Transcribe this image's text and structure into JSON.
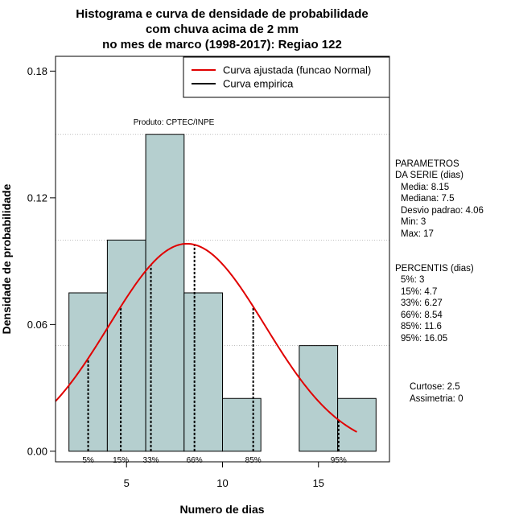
{
  "chart_data": {
    "type": "bar",
    "title_lines": [
      "Histograma e curva de densidade de probabilidade",
      "com chuva acima de 2 mm",
      "no mes de marco (1998-2017): Regiao 122"
    ],
    "xlabel": "Numero de dias",
    "ylabel": "Densidade de probabilidade",
    "xlim": [
      1.3,
      18.7
    ],
    "ylim": [
      -0.005,
      0.187
    ],
    "x_ticks": [
      5,
      10,
      15
    ],
    "y_ticks": [
      0.0,
      0.06,
      0.12,
      0.18
    ],
    "y_tick_labels": [
      "0.00",
      "0.06",
      "0.12",
      "0.18"
    ],
    "grid_y": [
      0.05,
      0.1,
      0.15
    ],
    "histogram": {
      "bin_edges": [
        2,
        4,
        6,
        8,
        10,
        12,
        14,
        16,
        18
      ],
      "density": [
        0.075,
        0.1,
        0.15,
        0.075,
        0.025,
        0.0,
        0.05,
        0.025
      ],
      "fill_color": "#b5cfcf",
      "edge_color": "#000000"
    },
    "normal_curve": {
      "name": "Curva ajustada (funcao Normal)",
      "mean": 8.15,
      "sd": 4.06,
      "x_range": [
        1.3,
        17.0
      ],
      "color": "#e00000"
    },
    "empirical_curve": {
      "name": "Curva empirica",
      "color": "#000000"
    },
    "percentile_lines": [
      {
        "label": "5%",
        "value": 3
      },
      {
        "label": "15%",
        "value": 4.7
      },
      {
        "label": "33%",
        "value": 6.27
      },
      {
        "label": "66%",
        "value": 8.54
      },
      {
        "label": "85%",
        "value": 11.6
      },
      {
        "label": "95%",
        "value": 16.05
      }
    ],
    "legend_position": "top-right",
    "product_note": "Produto: CPTEC/INPE"
  },
  "side_panel": {
    "params_title_1": "PARAMETROS",
    "params_title_2": "DA SERIE (dias)",
    "params": [
      "Media: 8.15",
      "Mediana: 7.5",
      "Desvio padrao: 4.06",
      "Min: 3",
      "Max: 17"
    ],
    "percentis_title": "PERCENTIS (dias)",
    "percentis": [
      "5%: 3",
      "15%: 4.7",
      "33%: 6.27",
      "66%: 8.54",
      "85%: 11.6",
      "95%: 16.05"
    ],
    "curtose": "Curtose: 2.5",
    "assimetria": "Assimetria: 0"
  }
}
